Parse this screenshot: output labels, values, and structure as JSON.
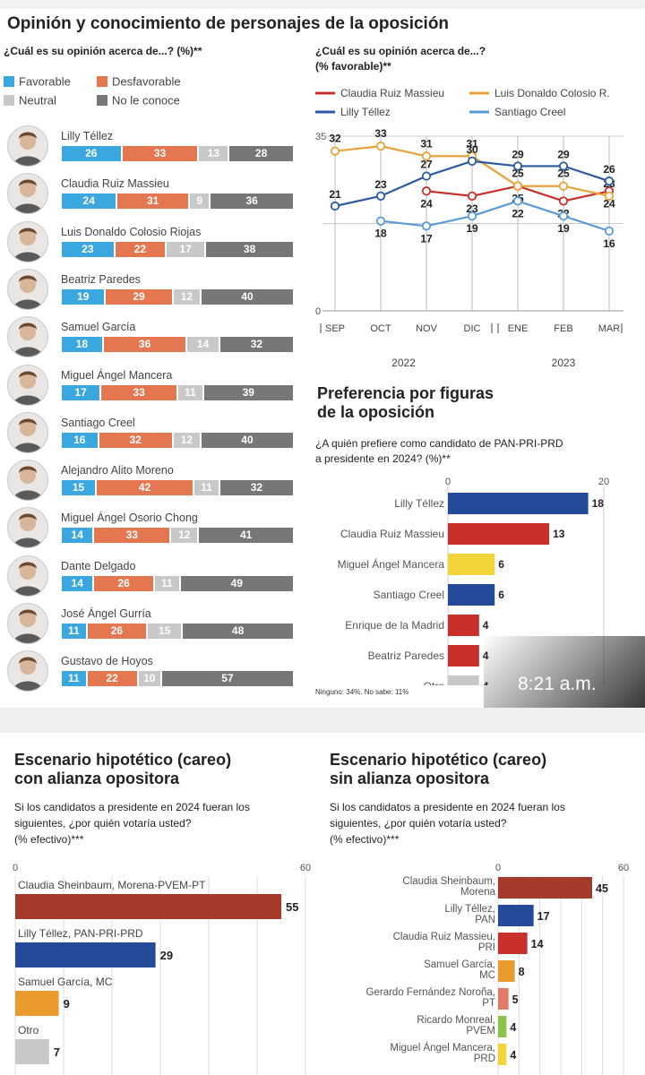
{
  "header": {
    "title": "Opinión y conocimiento de personajes de la oposición",
    "question_left": "¿Cuál es su opinión acerca de...? (%)**",
    "question_right_l1": "¿Cuál es su opinión acerca de...?",
    "question_right_l2": "(% favorable)**"
  },
  "legend": [
    {
      "label": "Favorable",
      "color": "#3aa7de"
    },
    {
      "label": "Desfavorable",
      "color": "#e4774f"
    },
    {
      "label": "Neutral",
      "color": "#c8c8c8"
    },
    {
      "label": "No le conoce",
      "color": "#777777"
    }
  ],
  "colors": {
    "favorable": "#3aa7de",
    "desfavorable": "#e4774f",
    "neutral": "#c8c8c8",
    "noconoce": "#777777",
    "red": "#c9302c",
    "blue": "#244a9a",
    "yellow": "#f2d43b",
    "orange": "#e99b2e",
    "lightred": "#e07b67",
    "green": "#8bc34a",
    "gray": "#c8c8c8",
    "darkred": "#a53a2a"
  },
  "people": [
    {
      "name": "Lilly Téllez",
      "values": [
        26,
        33,
        13,
        28
      ]
    },
    {
      "name": "Claudia Ruiz Massieu",
      "values": [
        24,
        31,
        9,
        36
      ]
    },
    {
      "name": "Luis Donaldo Colosio Riojas",
      "values": [
        23,
        22,
        17,
        38
      ]
    },
    {
      "name": "Beatriz Paredes",
      "values": [
        19,
        29,
        12,
        40
      ]
    },
    {
      "name": "Samuel García",
      "values": [
        18,
        36,
        14,
        32
      ]
    },
    {
      "name": "Miguel Ángel Mancera",
      "values": [
        17,
        33,
        11,
        39
      ]
    },
    {
      "name": "Santiago Creel",
      "values": [
        16,
        32,
        12,
        40
      ]
    },
    {
      "name": "Alejandro Alito Moreno",
      "values": [
        15,
        42,
        11,
        32
      ]
    },
    {
      "name": "Miguel Ángel Osorio Chong",
      "values": [
        14,
        33,
        12,
        41
      ]
    },
    {
      "name": "Dante Delgado",
      "values": [
        14,
        26,
        11,
        49
      ]
    },
    {
      "name": "José Ángel Gurría",
      "values": [
        11,
        26,
        15,
        48
      ]
    },
    {
      "name": "Gustavo de Hoyos",
      "values": [
        11,
        22,
        10,
        57
      ]
    }
  ],
  "line_legend": [
    {
      "label": "Claudia Ruiz Massieu",
      "color": "#c9302c"
    },
    {
      "label": "Luis Donaldo Colosio R.",
      "color": "#e9a23b"
    },
    {
      "label": "Lilly Téllez",
      "color": "#2c5aa0"
    },
    {
      "label": "Santiago Creel",
      "color": "#5b9bd5"
    }
  ],
  "year_labels": [
    "2022",
    "2023"
  ],
  "sec2": {
    "title_l1": "Preferencia por figuras",
    "title_l2": "de la oposición",
    "q_l1": "¿A quién prefiere como candidato de PAN-PRI-PRD",
    "q_l2": "a presidente en 2024? (%)**",
    "footnote": "Ninguno: 34%. No sabe: 11%"
  },
  "sec3": {
    "title_l1": "Escenario hipotético (careo)",
    "title_l2": "con alianza opositora",
    "q_l1": "Si los candidatos a presidente en 2024 fueran los",
    "q_l2": "siguientes, ¿por quién votaría usted?",
    "q_l3": "(% efectivo)***"
  },
  "sec4": {
    "title_l1": "Escenario hipotético (careo)",
    "title_l2": "sin alianza opositora",
    "q_l1": "Si los candidatos a presidente en 2024 fueran los",
    "q_l2": "siguientes, ¿por quién votaría usted?",
    "q_l3": "(% efectivo)***"
  },
  "overlay_time": "8:21 a.m.",
  "chart_data": [
    {
      "type": "bar",
      "stacked": true,
      "orientation": "horizontal",
      "categories": [
        "Lilly Téllez",
        "Claudia Ruiz Massieu",
        "Luis Donaldo Colosio Riojas",
        "Beatriz Paredes",
        "Samuel García",
        "Miguel Ángel Mancera",
        "Santiago Creel",
        "Alejandro Alito Moreno",
        "Miguel Ángel Osorio Chong",
        "Dante Delgado",
        "José Ángel Gurría",
        "Gustavo de Hoyos"
      ],
      "series": [
        {
          "name": "Favorable",
          "values": [
            26,
            24,
            23,
            19,
            18,
            17,
            16,
            15,
            14,
            14,
            11,
            11
          ]
        },
        {
          "name": "Desfavorable",
          "values": [
            33,
            31,
            22,
            29,
            36,
            33,
            32,
            42,
            33,
            26,
            26,
            22
          ]
        },
        {
          "name": "Neutral",
          "values": [
            13,
            9,
            17,
            12,
            14,
            11,
            12,
            11,
            12,
            11,
            15,
            10
          ]
        },
        {
          "name": "No le conoce",
          "values": [
            28,
            36,
            38,
            40,
            32,
            39,
            40,
            32,
            41,
            49,
            48,
            57
          ]
        }
      ]
    },
    {
      "type": "line",
      "x": [
        "SEP",
        "OCT",
        "NOV",
        "DIC",
        "ENE",
        "FEB",
        "MAR"
      ],
      "ylim": [
        0,
        35
      ],
      "yticks": [
        0,
        35
      ],
      "series": [
        {
          "name": "Claudia Ruiz Massieu",
          "values": [
            null,
            null,
            24,
            23,
            25,
            22,
            24
          ]
        },
        {
          "name": "Luis Donaldo Colosio R.",
          "values": [
            32,
            33,
            31,
            31,
            25,
            25,
            23
          ]
        },
        {
          "name": "Lilly Téllez",
          "values": [
            21,
            23,
            27,
            30,
            29,
            29,
            26
          ]
        },
        {
          "name": "Santiago Creel",
          "values": [
            null,
            18,
            17,
            19,
            22,
            19,
            16
          ]
        }
      ]
    },
    {
      "type": "bar",
      "orientation": "horizontal",
      "categories": [
        "Lilly Téllez",
        "Claudia Ruiz Massieu",
        "Miguel Ángel Mancera",
        "Santiago Creel",
        "Enrique de la Madrid",
        "Beatriz Paredes",
        "Otro"
      ],
      "values": [
        18,
        13,
        6,
        6,
        4,
        4,
        4
      ],
      "xlim": [
        0,
        20
      ],
      "xticks": [
        0,
        20
      ]
    },
    {
      "type": "bar",
      "orientation": "horizontal",
      "categories": [
        "Claudia Sheinbaum, Morena-PVEM-PT",
        "Lilly Téllez, PAN-PRI-PRD",
        "Samuel García, MC",
        "Otro"
      ],
      "values": [
        55,
        29,
        9,
        7
      ],
      "xlim": [
        0,
        60
      ],
      "xticks": [
        0,
        60
      ]
    },
    {
      "type": "bar",
      "orientation": "horizontal",
      "categories": [
        "Claudia Sheinbaum, Morena",
        "Lilly Téllez, PAN",
        "Claudia Ruiz Massieu, PRI",
        "Samuel García, MC",
        "Gerardo Fernández Noroña, PT",
        "Ricardo Monreal, PVEM",
        "Miguel Ángel Mancera, PRD"
      ],
      "values": [
        45,
        17,
        14,
        8,
        5,
        4,
        4
      ],
      "xlim": [
        0,
        60
      ],
      "xticks": [
        0,
        60
      ]
    }
  ]
}
